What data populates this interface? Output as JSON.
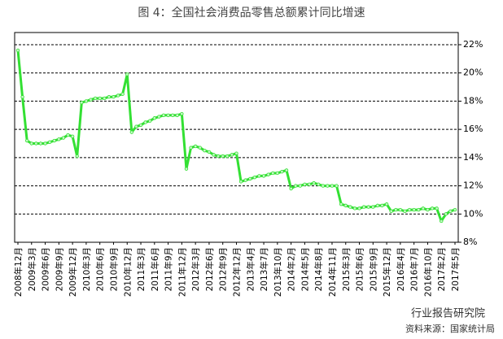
{
  "chart_data": {
    "type": "line",
    "title": "图 4：全国社会消费品零售总额累计同比增速",
    "source": "资料来源：国家统计局",
    "watermark": "行业报告研究院",
    "color": "#33e033",
    "grid": true,
    "ylim": [
      8,
      22
    ],
    "yticks": [
      {
        "value": 8,
        "label": "8%"
      },
      {
        "value": 10,
        "label": "10%"
      },
      {
        "value": 12,
        "label": "12%"
      },
      {
        "value": 14,
        "label": "14%"
      },
      {
        "value": 16,
        "label": "16%"
      },
      {
        "value": 18,
        "label": "18%"
      },
      {
        "value": 20,
        "label": "20%"
      },
      {
        "value": 22,
        "label": "22%"
      }
    ],
    "categories": [
      "2008年12月",
      null,
      null,
      "2009年3月",
      null,
      null,
      "2009年6月",
      null,
      null,
      "2009年9月",
      null,
      null,
      "2009年12月",
      null,
      null,
      "2010年3月",
      null,
      null,
      "2010年6月",
      null,
      null,
      "2010年9月",
      null,
      null,
      "2010年12月",
      null,
      null,
      "2011年3月",
      null,
      null,
      "2011年6月",
      null,
      null,
      "2011年9月",
      null,
      null,
      "2011年12月",
      null,
      null,
      "2012年3月",
      null,
      null,
      "2012年6月",
      null,
      null,
      "2012年9月",
      null,
      null,
      "2012年12月",
      null,
      null,
      "2013年4月",
      null,
      null,
      "2013年7月",
      null,
      null,
      "2013年10月",
      null,
      null,
      "2014年2月",
      null,
      null,
      "2014年5月",
      null,
      null,
      "2014年8月",
      null,
      null,
      "2014年11月",
      null,
      null,
      "2015年3月",
      null,
      null,
      "2015年6月",
      null,
      null,
      "2015年9月",
      null,
      null,
      "2015年12月",
      null,
      null,
      "2016年4月",
      null,
      null,
      "2016年7月",
      null,
      null,
      "2016年10月",
      null,
      null,
      "2017年2月",
      null,
      null,
      "2017年5月"
    ],
    "values": [
      21.6,
      18.3,
      15.2,
      15.0,
      15.0,
      15.0,
      15.0,
      15.1,
      15.2,
      15.3,
      15.4,
      15.6,
      15.5,
      14.1,
      17.9,
      18.0,
      18.1,
      18.2,
      18.2,
      18.2,
      18.3,
      18.3,
      18.4,
      18.5,
      19.9,
      15.8,
      16.2,
      16.3,
      16.5,
      16.6,
      16.8,
      16.9,
      17.0,
      17.0,
      17.0,
      17.0,
      17.1,
      13.2,
      14.7,
      14.8,
      14.7,
      14.5,
      14.4,
      14.2,
      14.1,
      14.1,
      14.1,
      14.2,
      14.3,
      12.3,
      12.4,
      12.5,
      12.6,
      12.7,
      12.7,
      12.8,
      12.9,
      12.9,
      13.0,
      13.1,
      11.8,
      12.0,
      12.0,
      12.1,
      12.1,
      12.2,
      12.1,
      12.0,
      12.0,
      12.0,
      12.0,
      10.7,
      10.6,
      10.5,
      10.4,
      10.4,
      10.5,
      10.5,
      10.5,
      10.6,
      10.6,
      10.7,
      10.2,
      10.3,
      10.3,
      10.2,
      10.3,
      10.3,
      10.3,
      10.4,
      10.3,
      10.4,
      10.4,
      9.5,
      10.0,
      10.2,
      10.3
    ]
  }
}
